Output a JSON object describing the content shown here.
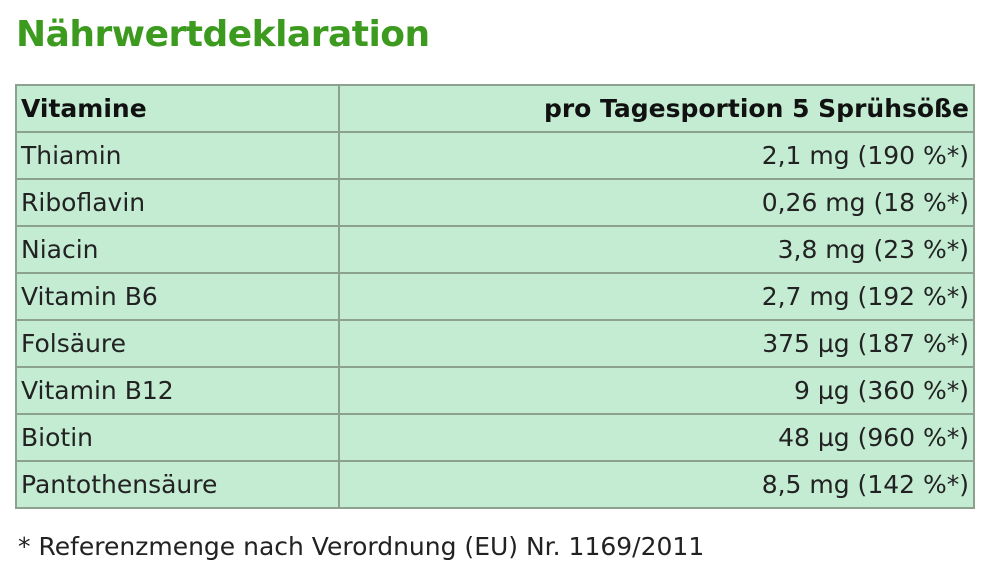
{
  "header": {
    "title": "Nährwertdeklaration"
  },
  "table": {
    "columns": [
      "Vitamine",
      "pro Tagesportion 5 Sprühsöße"
    ],
    "rows": [
      [
        "Thiamin",
        "2,1 mg (190 %*)"
      ],
      [
        "Riboflavin",
        "0,26 mg (18 %*)"
      ],
      [
        "Niacin",
        "3,8 mg (23 %*)"
      ],
      [
        "Vitamin B6",
        "2,7 mg (192 %*)"
      ],
      [
        "Folsäure",
        "375 µg (187 %*)"
      ],
      [
        "Vitamin B12",
        "9 µg (360 %*)"
      ],
      [
        "Biotin",
        "48 µg (960 %*)"
      ],
      [
        "Pantothensäure",
        "8,5 mg (142 %*)"
      ]
    ]
  },
  "footnote": "* Referenzmenge nach Verordnung (EU) Nr. 1169/2011"
}
